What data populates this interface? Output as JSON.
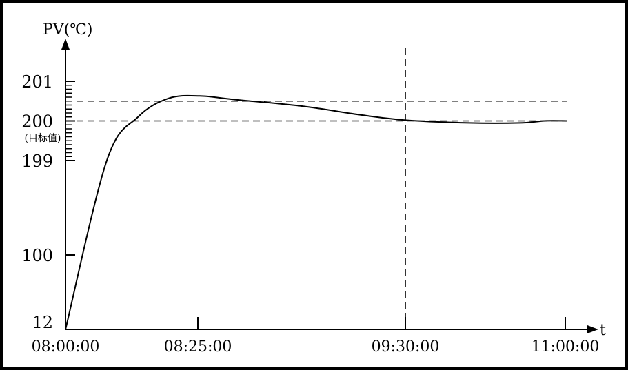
{
  "chart_data": {
    "type": "line",
    "ylabel": "PV(℃)",
    "xlabel": "t",
    "y_ticks": [
      {
        "value": 12,
        "label": "12"
      },
      {
        "value": 100,
        "label": "100"
      },
      {
        "value": 199,
        "label": "199"
      },
      {
        "value": 200,
        "label": "200"
      },
      {
        "value": 201,
        "label": "201"
      }
    ],
    "y_target_note": "(目标值)",
    "y_minor_tick_step": 0.1,
    "x_ticks": [
      "08:00:00",
      "08:25:00",
      "09:30:00",
      "11:00:00"
    ],
    "reference_lines": {
      "horizontal": [
        200,
        200.5
      ],
      "vertical": [
        "09:30:00"
      ]
    },
    "series": [
      {
        "x": [
          "08:00:00",
          "08:07:48",
          "08:13:42",
          "08:19:30",
          "08:25:36",
          "08:36:24",
          "08:58:00",
          "09:15:18",
          "09:30:00",
          "10:05:42",
          "10:34:48",
          "10:48:24",
          "11:00:48"
        ],
        "y": [
          12,
          199.0,
          200.1,
          200.57,
          200.63,
          200.54,
          200.37,
          200.16,
          200.02,
          199.95,
          199.95,
          200.0,
          200.0
        ]
      }
    ],
    "axis_scale": "broken (compressed 12–199, expanded 199–201)",
    "grid": false,
    "line_color": "#000000"
  }
}
